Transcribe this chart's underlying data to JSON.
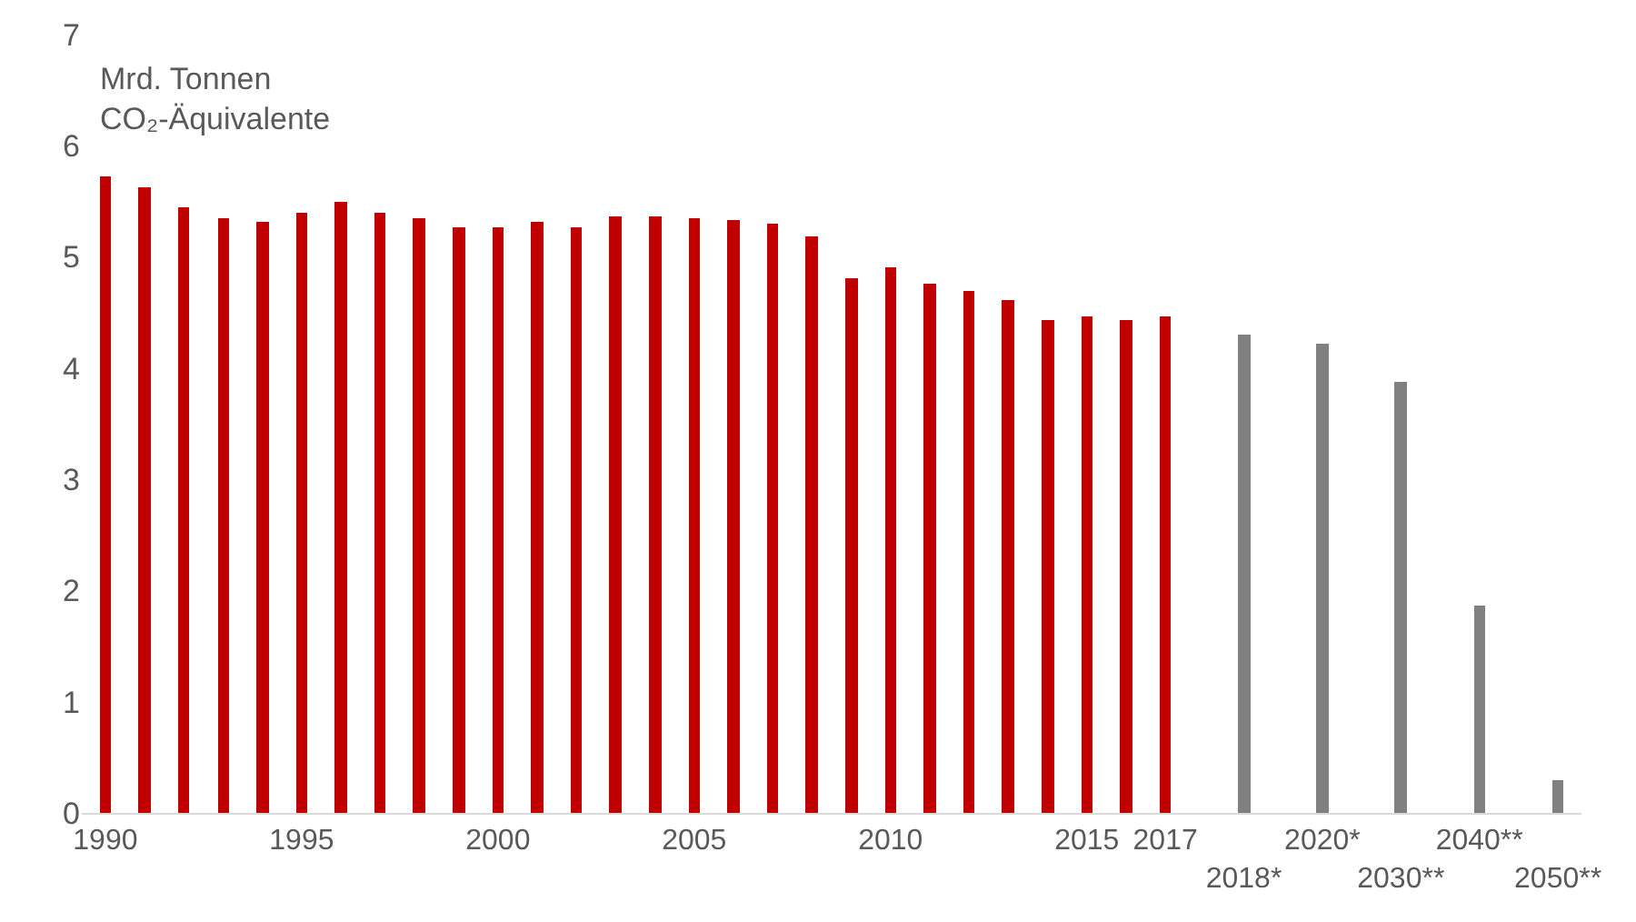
{
  "chart_data": {
    "type": "bar",
    "ylabel": "Mrd. Tonnen\nCO₂-Äquivalente",
    "categories": [
      "1990",
      null,
      null,
      null,
      null,
      "1995",
      null,
      null,
      null,
      null,
      "2000",
      null,
      null,
      null,
      null,
      "2005",
      null,
      null,
      null,
      null,
      "2010",
      null,
      null,
      null,
      null,
      "2015",
      null,
      "2017",
      null,
      "2018*",
      null,
      "2020*",
      null,
      "2030**",
      null,
      "2040**",
      null,
      "2050**"
    ],
    "values": [
      5.72,
      5.62,
      5.45,
      5.35,
      5.32,
      5.39,
      5.5,
      5.4,
      5.35,
      5.26,
      5.27,
      5.32,
      5.27,
      5.37,
      5.37,
      5.35,
      5.34,
      5.3,
      5.19,
      4.81,
      4.91,
      4.76,
      4.7,
      4.61,
      4.43,
      4.46,
      4.43,
      4.46,
      null,
      4.3,
      null,
      4.22,
      null,
      3.87,
      null,
      1.86,
      null,
      0.3
    ],
    "colors": [
      "#c00000",
      "#c00000",
      "#c00000",
      "#c00000",
      "#c00000",
      "#c00000",
      "#c00000",
      "#c00000",
      "#c00000",
      "#c00000",
      "#c00000",
      "#c00000",
      "#c00000",
      "#c00000",
      "#c00000",
      "#c00000",
      "#c00000",
      "#c00000",
      "#c00000",
      "#c00000",
      "#c00000",
      "#c00000",
      "#c00000",
      "#c00000",
      "#c00000",
      "#c00000",
      "#c00000",
      "#c00000",
      "#808080",
      "#808080",
      "#808080",
      "#808080",
      "#808080",
      "#808080",
      "#808080",
      "#808080",
      "#808080",
      "#808080"
    ],
    "ylim": [
      0,
      7
    ],
    "yticks": [
      0,
      1,
      2,
      3,
      4,
      5,
      6,
      7
    ],
    "legend": false
  }
}
